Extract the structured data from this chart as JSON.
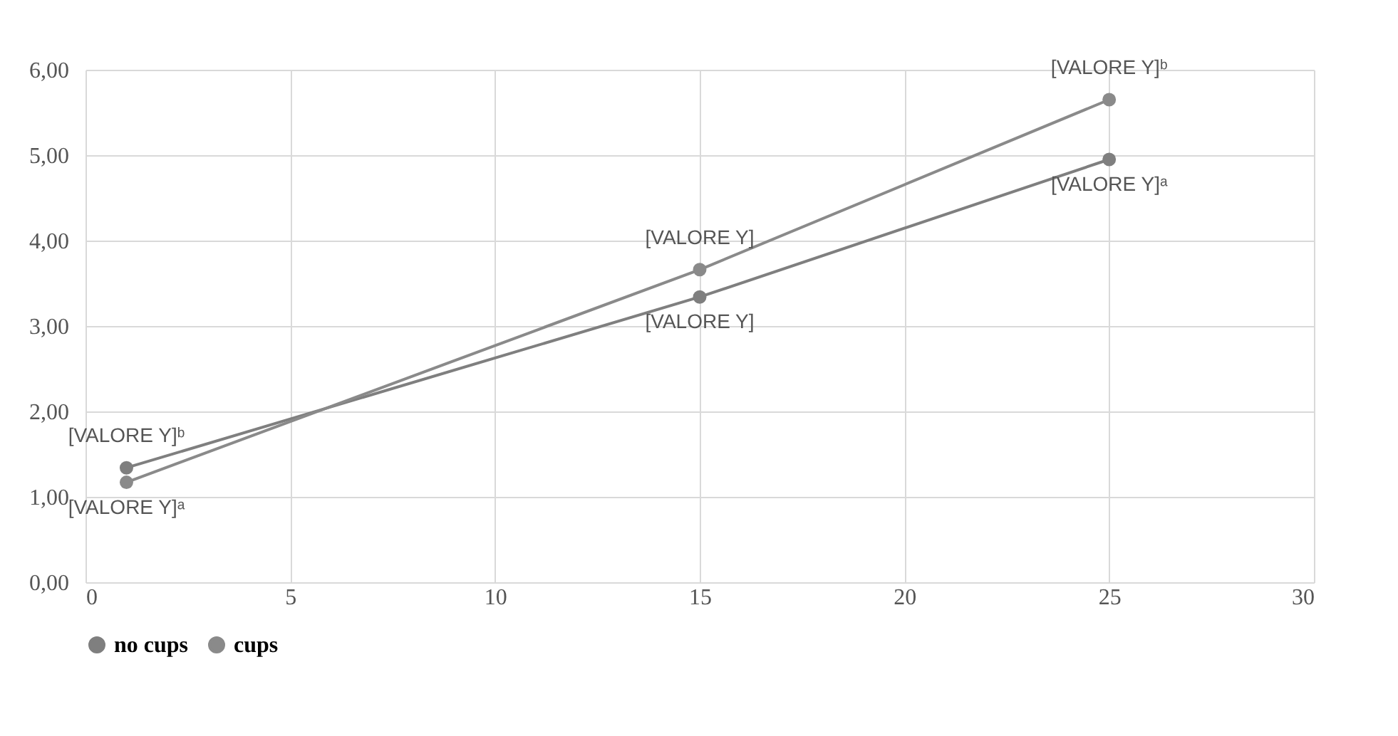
{
  "chart_data": {
    "type": "line",
    "x": [
      1,
      15,
      25
    ],
    "series": [
      {
        "name": "no cups",
        "color": "#7f7f7f",
        "values": [
          1.34,
          3.34,
          4.95
        ],
        "value_labels": [
          "[VALORE Y]ᵇ",
          "[VALORE Y]",
          "[VALORE Y]ᵃ"
        ]
      },
      {
        "name": "cups",
        "color": "#8a8a8a",
        "values": [
          1.17,
          3.66,
          5.65
        ],
        "value_labels": [
          "[VALORE Y]ᵃ",
          "[VALORE Y]",
          "[VALORE Y]ᵇ"
        ]
      }
    ],
    "xlim": [
      0,
      30
    ],
    "xticks": [
      0,
      5,
      10,
      15,
      20,
      25,
      30
    ],
    "ylim": [
      0,
      6
    ],
    "yticks": [
      {
        "value": 0,
        "label": "0,00"
      },
      {
        "value": 1,
        "label": "1,00"
      },
      {
        "value": 2,
        "label": "2,00"
      },
      {
        "value": 3,
        "label": "3,00"
      },
      {
        "value": 4,
        "label": "4,00"
      },
      {
        "value": 5,
        "label": "5,00"
      },
      {
        "value": 6,
        "label": "6,00"
      }
    ],
    "grid": true,
    "legend": "bottom",
    "marker": "circle",
    "line_style": "solid"
  }
}
